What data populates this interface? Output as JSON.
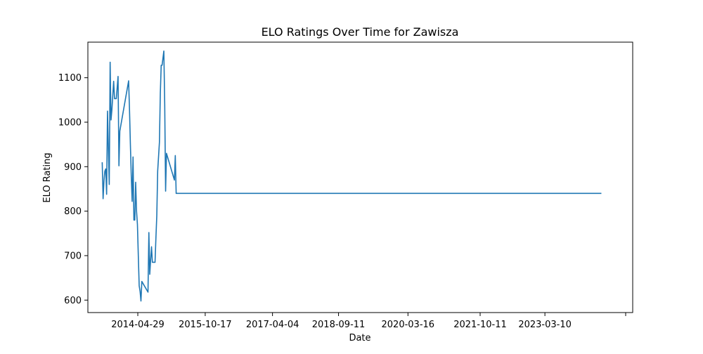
{
  "chart_data": {
    "type": "line",
    "title": "ELO Ratings Over Time for Zawisza",
    "xlabel": "Date",
    "ylabel": "ELO Rating",
    "x_ticks": [
      "2014-04-29",
      "2015-10-17",
      "2017-04-04",
      "2018-09-11",
      "2020-03-16",
      "2021-10-11",
      "2023-03-10"
    ],
    "y_ticks": [
      600,
      700,
      800,
      900,
      1000,
      1100
    ],
    "xlim": [
      "2013-03-28",
      "2025-02-05"
    ],
    "ylim": [
      572,
      1180
    ],
    "grid": false,
    "legend": "none",
    "line_color": "#1f77b4",
    "series": [
      {
        "x": [
          "2013-07-20",
          "2013-07-27",
          "2013-08-03",
          "2013-08-10",
          "2013-08-17",
          "2013-08-24",
          "2013-08-31",
          "2013-09-14",
          "2013-09-21",
          "2013-09-28",
          "2013-10-05",
          "2013-10-19",
          "2013-10-26",
          "2013-11-02",
          "2013-11-09",
          "2013-11-23",
          "2013-11-30",
          "2013-12-07",
          "2014-02-15",
          "2014-02-22",
          "2014-03-01",
          "2014-03-08",
          "2014-03-15",
          "2014-03-22",
          "2014-03-29",
          "2014-04-05",
          "2014-04-12",
          "2014-04-19",
          "2014-04-26",
          "2014-05-03",
          "2014-05-10",
          "2014-05-17",
          "2014-05-24",
          "2014-05-31",
          "2014-07-19",
          "2014-07-26",
          "2014-08-02",
          "2014-08-09",
          "2014-08-16",
          "2014-08-23",
          "2014-08-30",
          "2014-09-13",
          "2014-09-20",
          "2014-09-27",
          "2014-10-04",
          "2014-10-18",
          "2014-10-25",
          "2014-11-01",
          "2014-11-08",
          "2014-11-22",
          "2014-11-29",
          "2014-12-06",
          "2014-12-13",
          "2015-02-14",
          "2015-02-21",
          "2015-02-28",
          "2015-03-07",
          "2015-03-14",
          "2015-03-21",
          "2015-04-04",
          "2015-04-11",
          "2015-04-18",
          "2015-04-25",
          "2015-05-02",
          "2015-05-09",
          "2015-05-16",
          "2015-05-23",
          "2015-05-30",
          "2015-06-06",
          "2015-07-01",
          "2024-06-01"
        ],
        "values": [
          910,
          828,
          868,
          890,
          895,
          838,
          1025,
          860,
          1135,
          1005,
          1028,
          1092,
          1053,
          1053,
          1053,
          1103,
          902,
          980,
          1093,
          1028,
          950,
          880,
          822,
          922,
          780,
          780,
          865,
          800,
          770,
          700,
          632,
          620,
          598,
          642,
          618,
          752,
          658,
          690,
          720,
          685,
          685,
          685,
          740,
          790,
          890,
          955,
          1065,
          1128,
          1128,
          1160,
          1040,
          845,
          930,
          870,
          925,
          840,
          840,
          840,
          840,
          840,
          840,
          840,
          840,
          840,
          840,
          840,
          840,
          840,
          840,
          840,
          840
        ]
      }
    ]
  }
}
